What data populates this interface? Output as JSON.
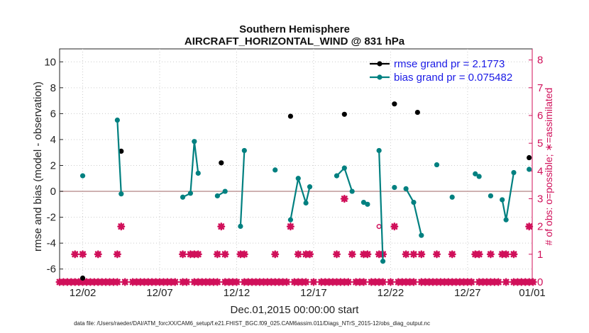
{
  "chart_data": {
    "type": "scatter",
    "title": "Southern Hemisphere",
    "subtitle": "AIRCRAFT_HORIZONTAL_WIND @ 831 hPa",
    "xlabel": "Dec.01,2015 00:00:00 start",
    "ylabel_left": "rmse and bias (model - observation)",
    "ylabel_right": "# of obs: o=possible; ∗=assimilated",
    "xlim": [
      0.5,
      31.2
    ],
    "ylim_left": [
      -7,
      11
    ],
    "ylim_right": [
      0,
      8.4
    ],
    "x_ticks": [
      {
        "value": 2,
        "label": "12/02"
      },
      {
        "value": 7,
        "label": "12/07"
      },
      {
        "value": 12,
        "label": "12/12"
      },
      {
        "value": 17,
        "label": "12/17"
      },
      {
        "value": 22,
        "label": "12/22"
      },
      {
        "value": 27,
        "label": "12/27"
      },
      {
        "value": 32,
        "label": "01/01"
      }
    ],
    "y_ticks_left": [
      -6,
      -4,
      -2,
      0,
      2,
      4,
      6,
      8,
      10
    ],
    "y_ticks_left_labels": [
      "-6",
      "-4",
      "-2",
      "0",
      "2",
      "4",
      "6",
      "8",
      "10"
    ],
    "y_ticks_right": [
      0,
      1,
      2,
      3,
      4,
      5,
      6,
      7,
      8
    ],
    "y_ticks_right_labels": [
      "0",
      "1",
      "2",
      "3",
      "4",
      "5",
      "6",
      "7",
      "8"
    ],
    "zero_line": true,
    "grid": true,
    "legend_position": "top-right",
    "colors": {
      "rmse": "#000000",
      "bias": "#008080",
      "obs": "#d0105a",
      "axis_right": "#d0105a",
      "legend_text": "#1a1ae6"
    },
    "series": [
      {
        "name": "rmse grand pr = 2.1773",
        "style": "line-markers",
        "points": [
          [
            2.0,
            -6.7
          ],
          [
            4.5,
            3.1
          ],
          [
            11.0,
            2.2
          ],
          [
            15.5,
            5.8
          ],
          [
            19.0,
            5.95
          ],
          [
            22.25,
            6.75
          ],
          [
            23.75,
            6.1
          ],
          [
            31.0,
            2.6
          ]
        ]
      },
      {
        "name": "bias grand pr = 0.075482",
        "style": "line-markers",
        "points": [
          [
            2.0,
            1.2
          ],
          [
            4.25,
            5.5
          ],
          [
            4.5,
            -0.2
          ],
          [
            8.5,
            -0.45
          ],
          [
            9.0,
            -0.15
          ],
          [
            9.25,
            3.85
          ],
          [
            9.5,
            1.4
          ],
          [
            10.75,
            -0.35
          ],
          [
            11.25,
            0.0
          ],
          [
            12.25,
            -2.7
          ],
          [
            12.5,
            3.15
          ],
          [
            14.5,
            1.65
          ],
          [
            15.5,
            -2.2
          ],
          [
            16.0,
            1.0
          ],
          [
            16.5,
            -0.9
          ],
          [
            16.75,
            0.35
          ],
          [
            18.5,
            1.2
          ],
          [
            19.0,
            1.8
          ],
          [
            19.5,
            0.0
          ],
          [
            20.25,
            -0.85
          ],
          [
            20.5,
            -1.0
          ],
          [
            21.25,
            3.15
          ],
          [
            21.5,
            -5.4
          ],
          [
            22.25,
            0.3
          ],
          [
            23.0,
            0.2
          ],
          [
            23.5,
            -0.85
          ],
          [
            24.0,
            -3.4
          ],
          [
            25.0,
            2.05
          ],
          [
            26.0,
            -0.45
          ],
          [
            27.5,
            1.35
          ],
          [
            27.75,
            1.15
          ],
          [
            28.5,
            -0.35
          ],
          [
            29.25,
            -0.65
          ],
          [
            29.5,
            -2.2
          ],
          [
            30.0,
            1.45
          ],
          [
            31.0,
            1.7
          ]
        ]
      }
    ],
    "obs_possible": [
      [
        21.25,
        2.0
      ]
    ],
    "obs_assimilated": [
      [
        1.5,
        1
      ],
      [
        2.0,
        1
      ],
      [
        3.0,
        1
      ],
      [
        4.25,
        1
      ],
      [
        4.5,
        2
      ],
      [
        8.5,
        1
      ],
      [
        9.0,
        1
      ],
      [
        9.25,
        1
      ],
      [
        9.5,
        1
      ],
      [
        10.75,
        1
      ],
      [
        11.0,
        2
      ],
      [
        11.25,
        1
      ],
      [
        12.25,
        1
      ],
      [
        12.5,
        1
      ],
      [
        14.5,
        1
      ],
      [
        15.5,
        2
      ],
      [
        16.0,
        1
      ],
      [
        16.5,
        1
      ],
      [
        16.75,
        1
      ],
      [
        18.5,
        1
      ],
      [
        19.0,
        3
      ],
      [
        19.5,
        1
      ],
      [
        20.25,
        1
      ],
      [
        20.5,
        1
      ],
      [
        21.25,
        1
      ],
      [
        21.5,
        1
      ],
      [
        22.25,
        2
      ],
      [
        23.0,
        1
      ],
      [
        23.5,
        1
      ],
      [
        24.0,
        1
      ],
      [
        25.0,
        1
      ],
      [
        26.0,
        1
      ],
      [
        27.5,
        1
      ],
      [
        27.75,
        1
      ],
      [
        28.5,
        1
      ],
      [
        29.25,
        1
      ],
      [
        29.5,
        1
      ],
      [
        30.0,
        1
      ],
      [
        31.0,
        2
      ]
    ],
    "obs_zero_markers": [
      [
        0.5,
        0
      ],
      [
        0.75,
        0
      ],
      [
        1.0,
        0
      ],
      [
        1.25,
        0
      ],
      [
        1.5,
        0
      ],
      [
        1.75,
        0
      ],
      [
        2.0,
        0
      ],
      [
        2.25,
        0
      ],
      [
        2.5,
        0
      ],
      [
        2.75,
        0
      ],
      [
        3.0,
        0
      ],
      [
        3.25,
        0
      ],
      [
        3.5,
        0
      ],
      [
        3.75,
        0
      ],
      [
        4.0,
        0
      ],
      [
        4.25,
        0
      ],
      [
        4.75,
        0
      ],
      [
        5.25,
        0
      ],
      [
        5.5,
        0
      ],
      [
        5.75,
        0
      ],
      [
        6.0,
        0
      ],
      [
        6.25,
        0
      ],
      [
        6.5,
        0
      ],
      [
        6.75,
        0
      ],
      [
        7.0,
        0
      ],
      [
        7.25,
        0
      ],
      [
        7.5,
        0
      ],
      [
        7.75,
        0
      ],
      [
        8.0,
        0
      ],
      [
        8.5,
        0
      ],
      [
        8.75,
        0
      ],
      [
        9.25,
        0
      ],
      [
        9.5,
        0
      ],
      [
        9.75,
        0
      ],
      [
        10.0,
        0
      ],
      [
        10.25,
        0
      ],
      [
        10.5,
        0
      ],
      [
        10.75,
        0
      ],
      [
        11.25,
        0
      ],
      [
        11.5,
        0
      ],
      [
        11.75,
        0
      ],
      [
        12.0,
        0
      ],
      [
        12.5,
        0
      ],
      [
        12.75,
        0
      ],
      [
        13.0,
        0
      ],
      [
        13.25,
        0
      ],
      [
        13.5,
        0
      ],
      [
        13.75,
        0
      ],
      [
        14.0,
        0
      ],
      [
        14.25,
        0
      ],
      [
        14.5,
        0
      ],
      [
        14.75,
        0
      ],
      [
        15.0,
        0
      ],
      [
        15.25,
        0
      ],
      [
        15.75,
        0
      ],
      [
        16.0,
        0
      ],
      [
        16.25,
        0
      ],
      [
        16.5,
        0
      ],
      [
        17.0,
        0
      ],
      [
        17.5,
        0
      ],
      [
        17.75,
        0
      ],
      [
        18.0,
        0
      ],
      [
        18.25,
        0
      ],
      [
        18.5,
        0
      ],
      [
        18.75,
        0
      ],
      [
        19.0,
        0
      ],
      [
        19.25,
        0
      ],
      [
        19.75,
        0
      ],
      [
        20.0,
        0
      ],
      [
        20.25,
        0
      ],
      [
        20.75,
        0
      ],
      [
        21.0,
        0
      ],
      [
        21.25,
        0
      ],
      [
        21.5,
        0
      ],
      [
        22.0,
        0
      ],
      [
        22.5,
        0
      ],
      [
        22.75,
        0
      ],
      [
        23.0,
        0
      ],
      [
        23.25,
        0
      ],
      [
        23.5,
        0
      ],
      [
        24.0,
        0
      ],
      [
        24.25,
        0
      ],
      [
        24.5,
        0
      ],
      [
        24.75,
        0
      ],
      [
        25.0,
        0
      ],
      [
        25.25,
        0
      ],
      [
        25.5,
        0
      ],
      [
        25.75,
        0
      ],
      [
        26.0,
        0
      ],
      [
        26.25,
        0
      ],
      [
        26.5,
        0
      ],
      [
        26.75,
        0
      ],
      [
        27.0,
        0
      ],
      [
        27.25,
        0
      ],
      [
        27.75,
        0
      ],
      [
        28.0,
        0
      ],
      [
        28.25,
        0
      ],
      [
        28.5,
        0
      ],
      [
        28.75,
        0
      ],
      [
        29.0,
        0
      ],
      [
        29.5,
        0
      ],
      [
        30.0,
        0
      ],
      [
        30.25,
        0
      ],
      [
        30.5,
        0
      ],
      [
        30.75,
        0
      ],
      [
        31.0,
        0
      ],
      [
        31.25,
        0
      ]
    ]
  },
  "footer": "data file: /Users/raeder/DAI/ATM_forcXX/CAM6_setup/f.e21.FHIST_BGC.f09_025.CAM6assim.011/Diags_NTrS_2015-12/obs_diag_output.nc"
}
